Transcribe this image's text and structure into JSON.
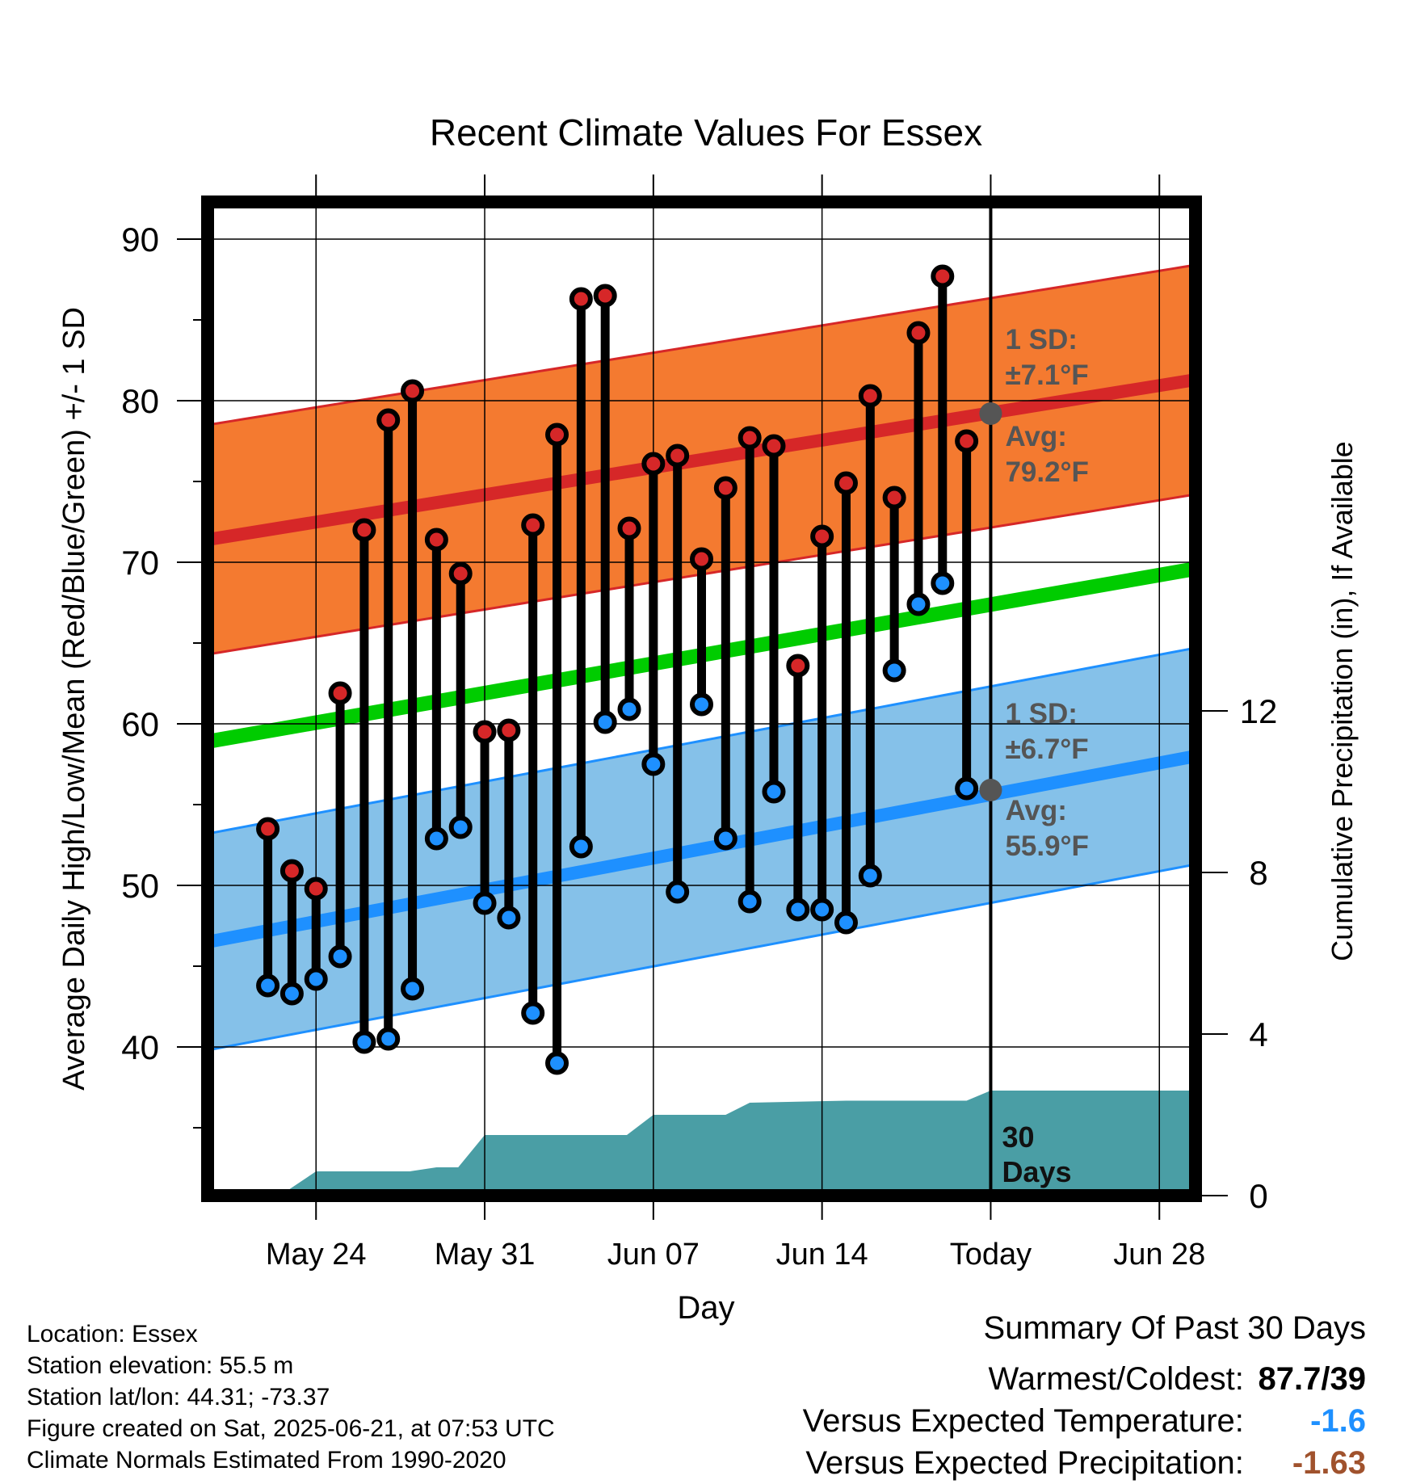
{
  "chart_data": {
    "type": "line",
    "title": "Recent Climate Values For Essex",
    "xlabel": "Day",
    "ylabel": "Average Daily High/Low/Mean (Red/Blue/Green) +/- 1 SD",
    "ylabel_right": "Cumulative Precipitation (in), If Available",
    "ylim": [
      30.8,
      92.3
    ],
    "y_ticks": [
      40,
      50,
      60,
      70,
      80,
      90
    ],
    "y_minor_ticks": [
      35,
      45,
      55,
      65,
      75,
      85
    ],
    "xlim": [
      -4.5,
      36.5
    ],
    "x_ticks": [
      {
        "label": "May 24",
        "day": 0
      },
      {
        "label": "May 31",
        "day": 7
      },
      {
        "label": "Jun 07",
        "day": 14
      },
      {
        "label": "Jun 14",
        "day": 21
      },
      {
        "label": "Today",
        "day": 28
      },
      {
        "label": "Jun 28",
        "day": 35
      }
    ],
    "right_ticks": [
      0,
      4,
      8,
      12
    ],
    "right_ylim": [
      0,
      24.6
    ],
    "today_label": "30\nDays",
    "normal_high": {
      "start": 71.4,
      "end": 81.3,
      "sd_label": "1 SD:\n±7.1°F",
      "avg_label": "Avg:\n79.2°F",
      "today_value": 79.2,
      "sd": 7.1
    },
    "normal_low": {
      "start": 46.5,
      "end": 58.0,
      "sd_label": "1 SD:\n±6.7°F",
      "avg_label": "Avg:\n55.9°F",
      "today_value": 55.9,
      "sd": 6.7
    },
    "normal_mean": {
      "start": 58.9,
      "end": 69.6
    },
    "daily": {
      "days": [
        -2,
        -1,
        0,
        1,
        2,
        3,
        4,
        5,
        6,
        7,
        8,
        9,
        10,
        11,
        12,
        13,
        14,
        15,
        16,
        17,
        18,
        19,
        20,
        21,
        22,
        23,
        24,
        25,
        26,
        27
      ],
      "high": [
        53.5,
        50.9,
        49.8,
        61.9,
        72.0,
        78.8,
        80.6,
        71.4,
        69.3,
        59.5,
        59.6,
        72.3,
        77.9,
        86.3,
        86.5,
        72.1,
        76.1,
        76.6,
        70.2,
        74.6,
        77.7,
        77.2,
        63.6,
        71.6,
        74.9,
        80.3,
        74.0,
        84.2,
        87.7,
        77.5
      ],
      "low": [
        43.8,
        43.3,
        44.2,
        45.6,
        40.3,
        40.5,
        43.6,
        52.9,
        53.6,
        48.9,
        48.0,
        42.1,
        39.0,
        52.4,
        60.1,
        60.9,
        57.5,
        49.6,
        61.2,
        52.9,
        49.0,
        55.8,
        48.5,
        48.5,
        47.7,
        50.6,
        63.3,
        67.4,
        68.7,
        56.0
      ]
    },
    "precip": {
      "days": [
        -3.4,
        -1.5,
        0,
        3.9,
        5,
        5.9,
        7,
        12.9,
        14,
        17,
        18,
        22,
        27,
        28,
        36.3
      ],
      "values": [
        0,
        0,
        0.6,
        0.6,
        0.7,
        0.7,
        1.5,
        1.5,
        2.0,
        2.0,
        2.3,
        2.35,
        2.35,
        2.6,
        2.6
      ]
    }
  },
  "footer": {
    "meta": [
      "Location: Essex",
      "Station elevation: 55.5 m",
      "Station lat/lon: 44.31; -73.37",
      "Figure created on Sat, 2025-06-21, at 07:53 UTC",
      "Climate Normals Estimated From 1990-2020"
    ]
  },
  "summary": {
    "heading": "Summary Of Past 30 Days",
    "warmest_coldest_label": "Warmest/Coldest:",
    "warmest_coldest_value": "87.7/39",
    "temp_label": "Versus Expected Temperature:",
    "temp_value": "-1.6",
    "temp_color": "#1e90ff",
    "precip_label": "Versus Expected Precipitation:",
    "precip_value": "-1.63",
    "precip_color": "#a0522d"
  },
  "colors": {
    "high_band": "#f47a30",
    "high_line": "#d62728",
    "low_band": "#85c1e9",
    "low_line": "#1e90ff",
    "mean_line": "#00cc00",
    "precip": "#4a9ea5",
    "dot_high": "#d62728",
    "dot_low": "#1e90ff",
    "marker_today": "#555555",
    "label_grey": "#555555"
  }
}
